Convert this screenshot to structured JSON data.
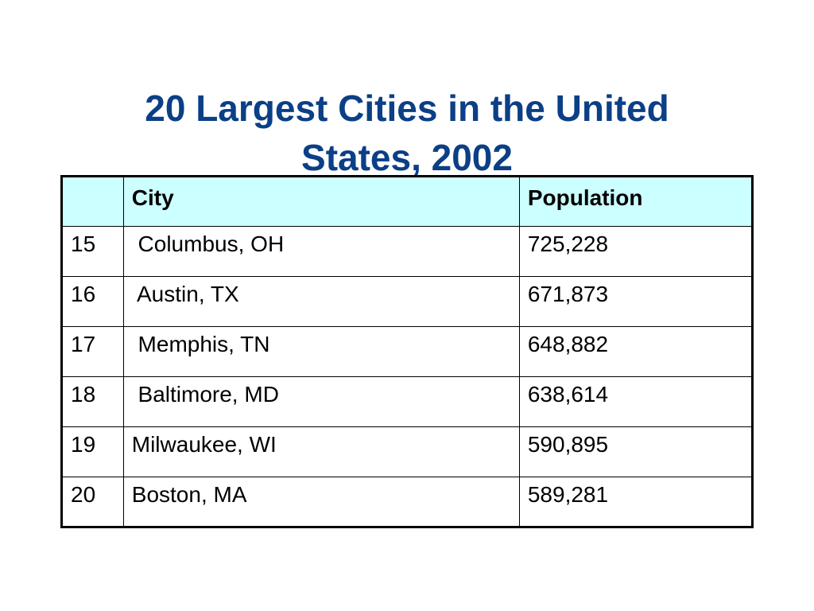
{
  "slide": {
    "title_line1": "20 Largest Cities in the United",
    "title_line2": "States, 2002"
  },
  "table": {
    "headers": [
      "",
      "City",
      "Population"
    ],
    "rows": [
      {
        "rank": "15",
        "city": " Columbus, OH",
        "population": "725,228"
      },
      {
        "rank": "16",
        "city": " Austin, TX",
        "population": "671,873"
      },
      {
        "rank": "17",
        "city": " Memphis, TN",
        "population": "648,882"
      },
      {
        "rank": "18",
        "city": " Baltimore, MD",
        "population": "638,614"
      },
      {
        "rank": "19",
        "city": "Milwaukee, WI",
        "population": "590,895"
      },
      {
        "rank": "20",
        "city": "Boston, MA",
        "population": "589,281"
      }
    ]
  },
  "colors": {
    "title": "#0b3f86",
    "header_background": "#ccffff",
    "border": "#000000"
  }
}
